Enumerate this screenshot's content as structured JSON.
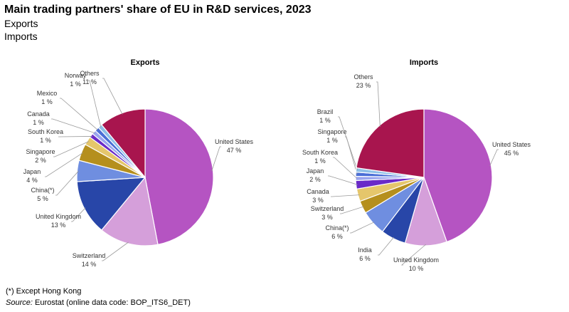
{
  "header": {
    "title": "Main trading partners' share of EU in R&D services, 2023",
    "subtitle1": "Exports",
    "subtitle2": "Imports"
  },
  "footer": {
    "note": "(*) Except Hong Kong",
    "source_label": "Source:",
    "source_text": "Eurostat (online data code: BOP_ITS6_DET)"
  },
  "chart_data": [
    {
      "type": "pie",
      "title": "Exports",
      "slices": [
        {
          "label": "United States",
          "value": 47,
          "pct": "47 %",
          "color": "#b554c2"
        },
        {
          "label": "Switzerland",
          "value": 14,
          "pct": "14 %",
          "color": "#d59fda"
        },
        {
          "label": "United Kingdom",
          "value": 13,
          "pct": "13 %",
          "color": "#2846a8"
        },
        {
          "label": "China(*)",
          "value": 5,
          "pct": "5 %",
          "color": "#6f8ee0"
        },
        {
          "label": "Japan",
          "value": 4,
          "pct": "4 %",
          "color": "#b58f1d"
        },
        {
          "label": "Singapore",
          "value": 2,
          "pct": "2 %",
          "color": "#e5c66b"
        },
        {
          "label": "South Korea",
          "value": 1,
          "pct": "1 %",
          "color": "#6a2ac8"
        },
        {
          "label": "Canada",
          "value": 1,
          "pct": "1 %",
          "color": "#9aa5ef"
        },
        {
          "label": "Mexico",
          "value": 1,
          "pct": "1 %",
          "color": "#4a6ed6"
        },
        {
          "label": "Norway",
          "value": 1,
          "pct": "1 %",
          "color": "#8fc0e8"
        },
        {
          "label": "Others",
          "value": 11,
          "pct": "11 %",
          "color": "#a8154e"
        }
      ]
    },
    {
      "type": "pie",
      "title": "Imports",
      "slices": [
        {
          "label": "United States",
          "value": 45,
          "pct": "45 %",
          "color": "#b554c2"
        },
        {
          "label": "United Kingdom",
          "value": 10,
          "pct": "10 %",
          "color": "#d59fda"
        },
        {
          "label": "India",
          "value": 6,
          "pct": "6 %",
          "color": "#2846a8"
        },
        {
          "label": "China(*)",
          "value": 6,
          "pct": "6 %",
          "color": "#6f8ee0"
        },
        {
          "label": "Switzerland",
          "value": 3,
          "pct": "3 %",
          "color": "#b58f1d"
        },
        {
          "label": "Canada",
          "value": 3,
          "pct": "3 %",
          "color": "#e5c66b"
        },
        {
          "label": "Japan",
          "value": 2,
          "pct": "2 %",
          "color": "#6a2ac8"
        },
        {
          "label": "South Korea",
          "value": 1,
          "pct": "1 %",
          "color": "#9aa5ef"
        },
        {
          "label": "Singapore",
          "value": 1,
          "pct": "1 %",
          "color": "#4a6ed6"
        },
        {
          "label": "Brazil",
          "value": 1,
          "pct": "1 %",
          "color": "#8fc0e8"
        },
        {
          "label": "Others",
          "value": 23,
          "pct": "23 %",
          "color": "#a8154e"
        }
      ]
    }
  ]
}
